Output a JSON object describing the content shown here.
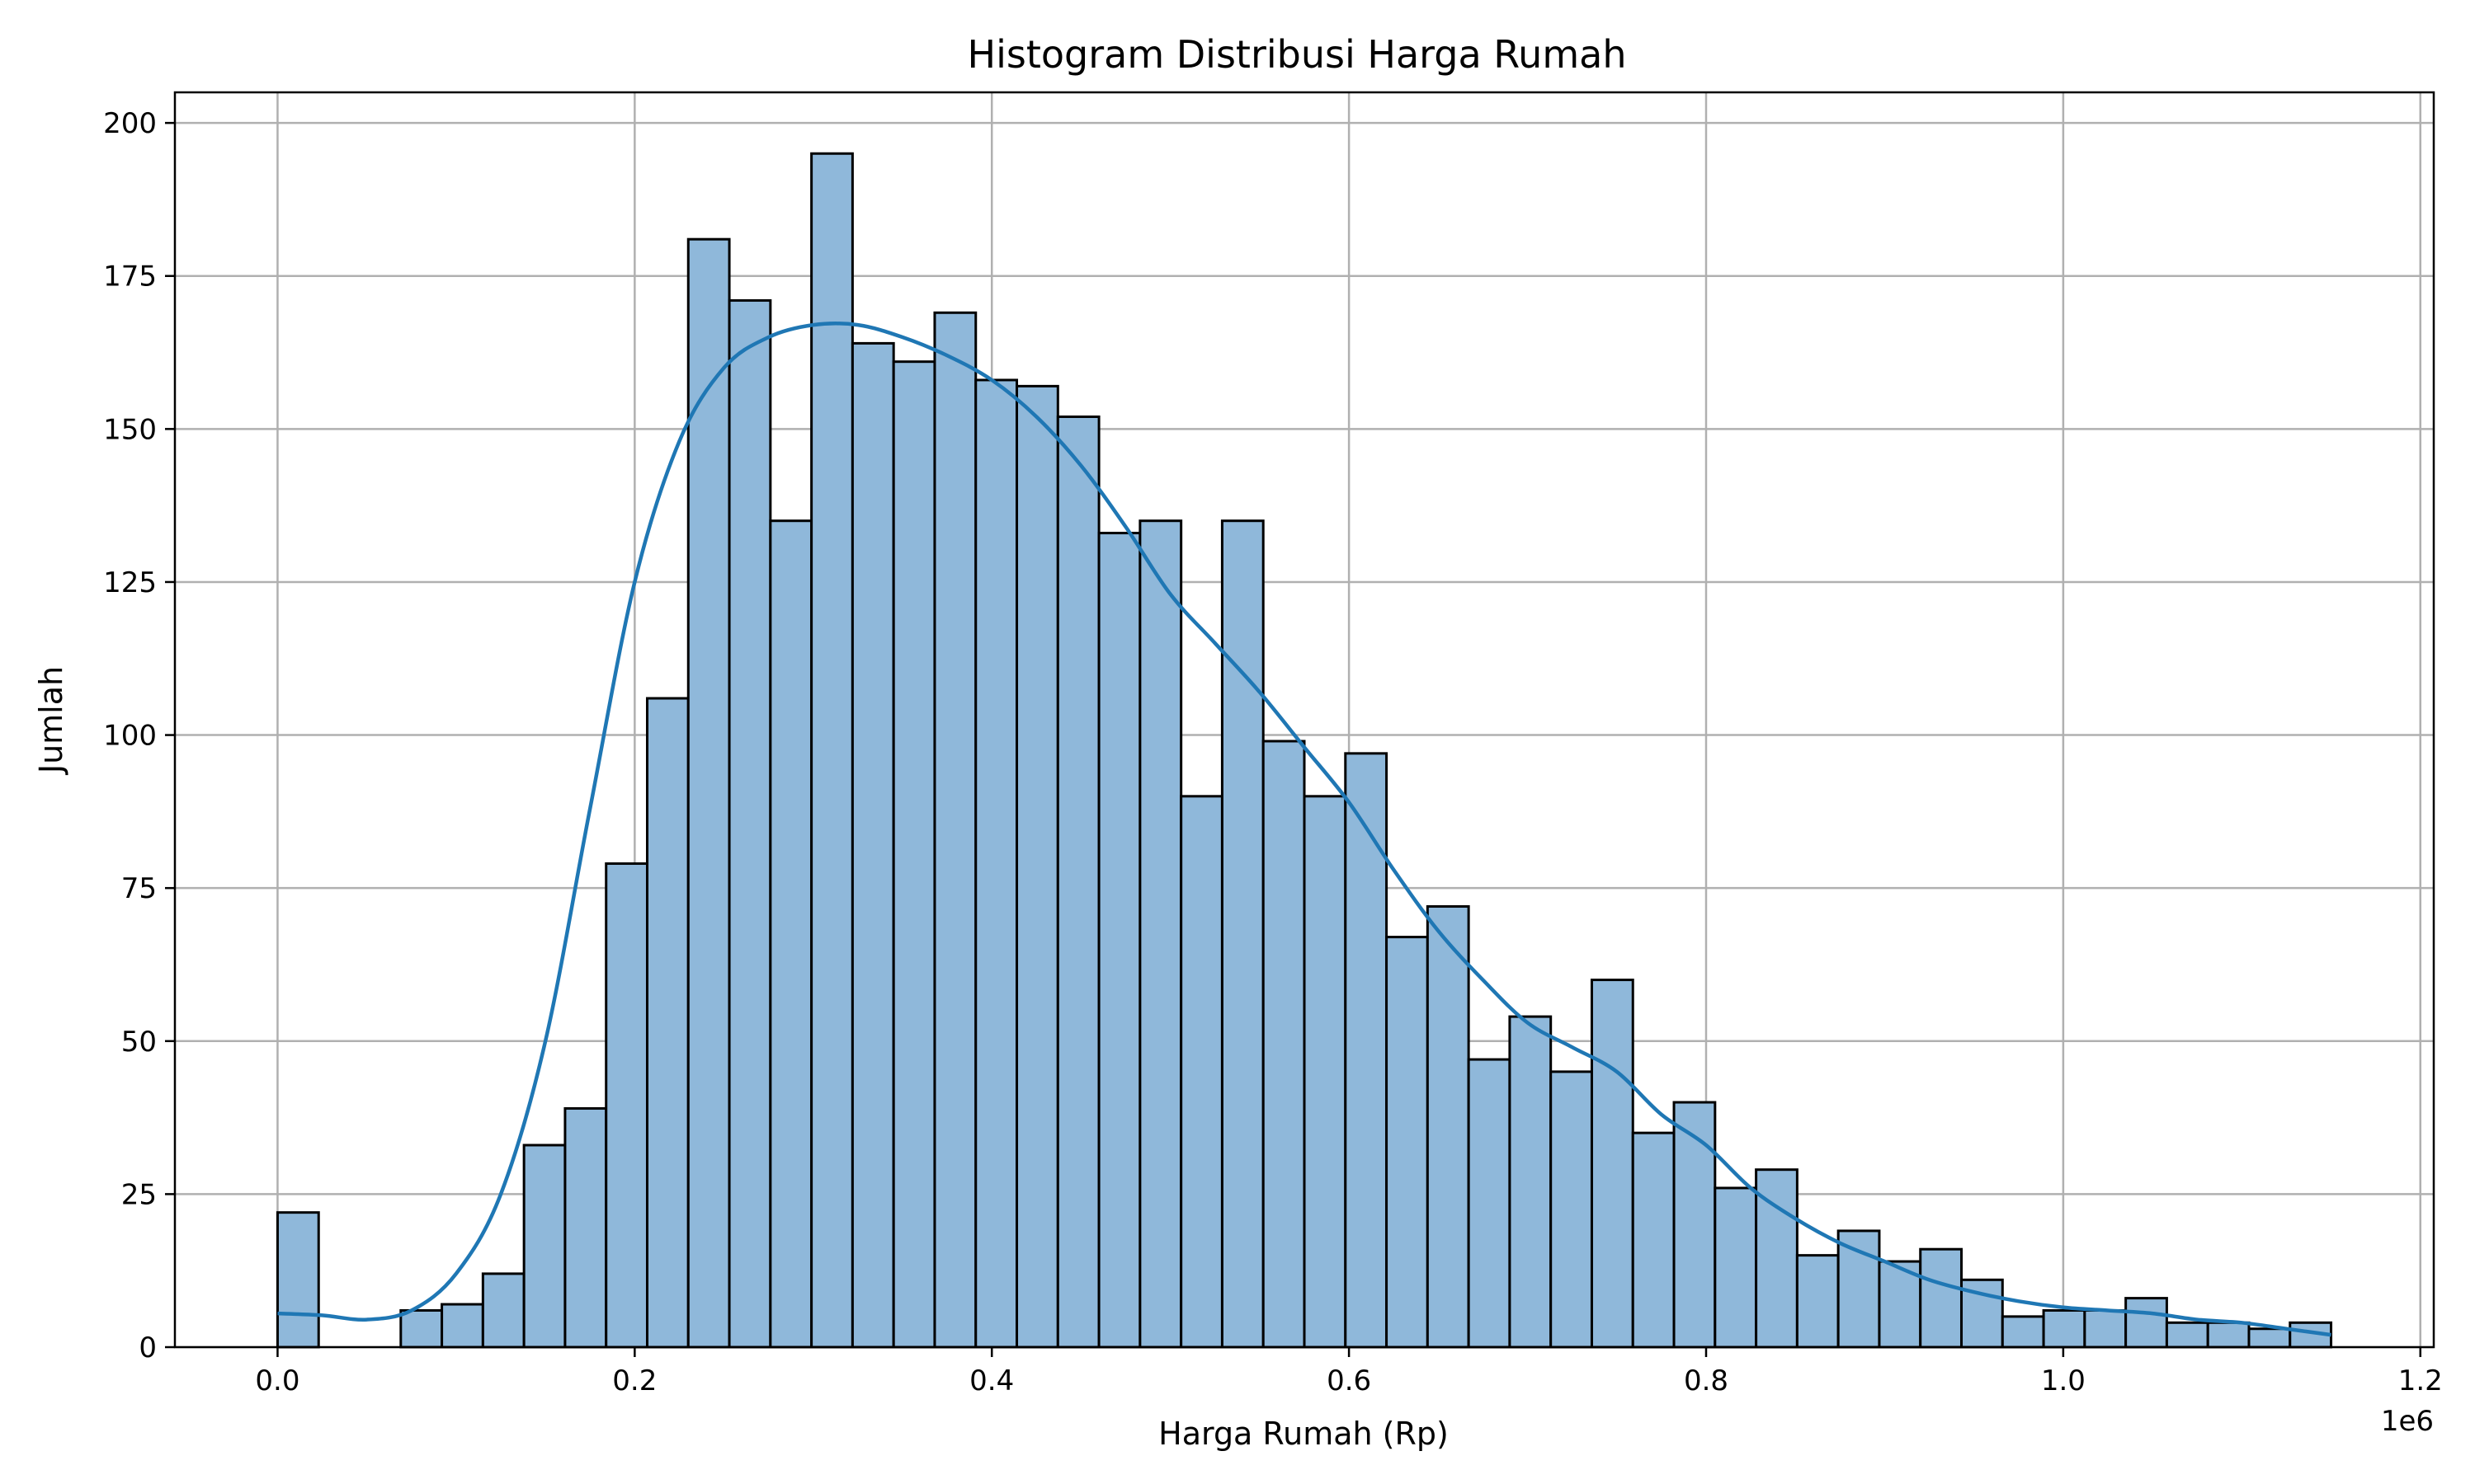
{
  "chart_data": {
    "type": "bar",
    "subtype": "histogram",
    "title": "Histogram Distribusi Harga Rumah",
    "xlabel": "Harga Rumah (Rp)",
    "ylabel": "Jumlah",
    "x_offset_label": "1e6",
    "xlim": [
      -0.0575,
      1.2075
    ],
    "ylim": [
      0,
      205
    ],
    "x_ticks": [
      0.0,
      0.2,
      0.4,
      0.6,
      0.8,
      1.0,
      1.2
    ],
    "x_tick_labels": [
      "0.0",
      "0.2",
      "0.4",
      "0.6",
      "0.8",
      "1.0",
      "1.2"
    ],
    "y_ticks": [
      0,
      25,
      50,
      75,
      100,
      125,
      150,
      175,
      200
    ],
    "y_tick_labels": [
      "0",
      "25",
      "50",
      "75",
      "100",
      "125",
      "150",
      "175",
      "200"
    ],
    "grid": true,
    "bin_start": 0.0,
    "bin_width": 0.023,
    "counts": [
      22,
      0,
      0,
      6,
      7,
      12,
      33,
      39,
      79,
      106,
      181,
      171,
      135,
      195,
      164,
      161,
      169,
      158,
      157,
      152,
      133,
      135,
      90,
      135,
      99,
      90,
      97,
      67,
      72,
      47,
      54,
      45,
      60,
      35,
      40,
      26,
      29,
      15,
      19,
      14,
      16,
      11,
      5,
      6,
      6,
      8,
      4,
      4,
      3,
      4
    ],
    "bar_color": "#8fb8da",
    "bar_edge_color": "#000000",
    "kde": {
      "color": "#1f77b4",
      "x": [
        0.0,
        0.025,
        0.05,
        0.075,
        0.1,
        0.125,
        0.15,
        0.175,
        0.2,
        0.225,
        0.25,
        0.275,
        0.3,
        0.325,
        0.35,
        0.375,
        0.4,
        0.425,
        0.45,
        0.475,
        0.5,
        0.525,
        0.55,
        0.575,
        0.6,
        0.625,
        0.65,
        0.675,
        0.7,
        0.725,
        0.75,
        0.775,
        0.8,
        0.825,
        0.85,
        0.875,
        0.9,
        0.925,
        0.95,
        0.975,
        1.0,
        1.025,
        1.05,
        1.075,
        1.1,
        1.125,
        1.15
      ],
      "y": [
        5.5,
        5.2,
        4.5,
        6,
        12,
        25,
        50,
        88,
        125,
        148,
        160,
        165,
        167,
        167,
        165,
        162,
        158,
        152,
        144,
        134,
        123,
        115,
        107,
        98,
        89,
        78,
        68,
        60,
        53,
        49,
        45,
        38,
        33,
        26,
        21,
        17,
        14,
        11,
        9,
        7.5,
        6.5,
        6,
        5.5,
        4.5,
        4,
        3,
        2
      ]
    }
  }
}
